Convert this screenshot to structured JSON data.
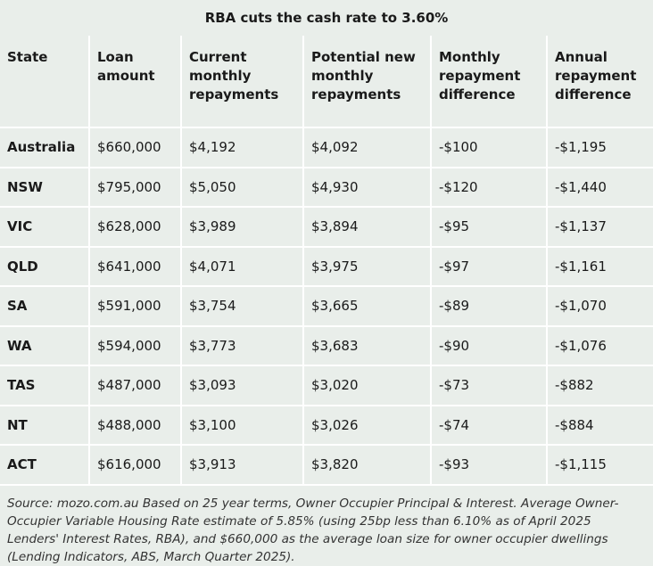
{
  "header": {
    "title": "RBA cuts the cash rate to 3.60%"
  },
  "table": {
    "columns": [
      "State",
      "Loan amount",
      "Current monthly repayments",
      "Potential new monthly repayments",
      "Monthly repayment difference",
      "Annual repayment difference"
    ],
    "rows": [
      [
        "Australia",
        "$660,000",
        "$4,192",
        "$4,092",
        "-$100",
        "-$1,195"
      ],
      [
        "NSW",
        "$795,000",
        "$5,050",
        "$4,930",
        "-$120",
        "-$1,440"
      ],
      [
        "VIC",
        "$628,000",
        "$3,989",
        "$3,894",
        "-$95",
        "-$1,137"
      ],
      [
        "QLD",
        "$641,000",
        "$4,071",
        "$3,975",
        "-$97",
        "-$1,161"
      ],
      [
        "SA",
        "$591,000",
        "$3,754",
        "$3,665",
        "-$89",
        "-$1,070"
      ],
      [
        "WA",
        "$594,000",
        "$3,773",
        "$3,683",
        "-$90",
        "-$1,076"
      ],
      [
        "TAS",
        "$487,000",
        "$3,093",
        "$3,020",
        "-$73",
        "-$882"
      ],
      [
        "NT",
        "$488,000",
        "$3,100",
        "$3,026",
        "-$74",
        "-$884"
      ],
      [
        "ACT",
        "$616,000",
        "$3,913",
        "$3,820",
        "-$93",
        "-$1,115"
      ]
    ]
  },
  "footer": {
    "source": "Source: mozo.com.au Based on 25 year terms, Owner Occupier Principal & Interest. Average Owner-Occupier Variable Housing Rate estimate of 5.85% (using 25bp less than 6.10% as of April 2025 Lenders' Interest Rates, RBA), and $660,000 as the average loan size for owner occupier dwellings (Lending Indicators, ABS, March Quarter 2025)."
  }
}
